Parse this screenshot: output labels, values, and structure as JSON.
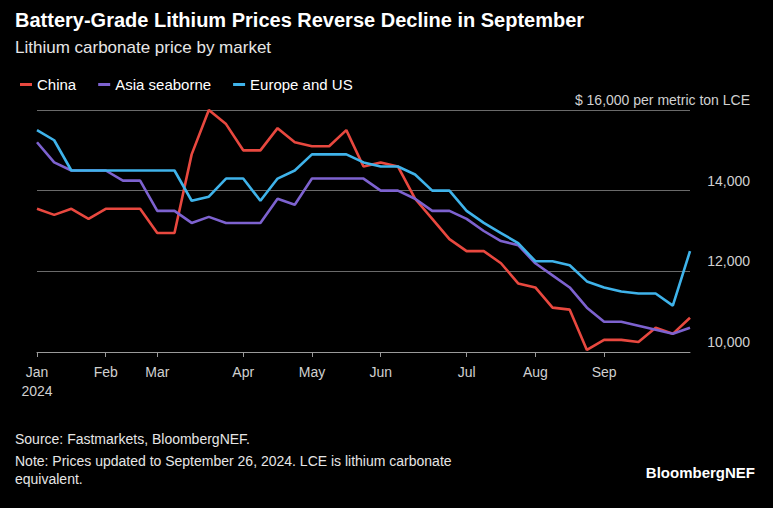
{
  "chart_data": {
    "type": "line",
    "title": "Battery-Grade Lithium Prices Reverse Decline in September",
    "subtitle": "Lithium carbonate price by market",
    "source": "Source: Fastmarkets, BloombergNEF.",
    "note": "Note: Prices updated to September 26, 2024. LCE is lithium carbonate equivalent.",
    "brand": "BloombergNEF",
    "categories": [
      "Jan\n2024",
      null,
      null,
      null,
      "Feb",
      null,
      null,
      "Mar",
      null,
      null,
      null,
      null,
      "Apr",
      null,
      null,
      null,
      "May",
      null,
      null,
      null,
      "Jun",
      null,
      null,
      null,
      null,
      "Jul",
      null,
      null,
      null,
      "Aug",
      null,
      null,
      null,
      "Sep",
      null,
      null,
      null,
      null,
      null
    ],
    "series": [
      {
        "name": "China",
        "color": "#e8483f",
        "values": [
          13550,
          13400,
          13550,
          13300,
          13550,
          13550,
          13550,
          12950,
          12950,
          14900,
          16000,
          15650,
          15000,
          15000,
          15550,
          15200,
          15100,
          15100,
          15500,
          14600,
          14700,
          14600,
          13800,
          13300,
          12800,
          12500,
          12500,
          12200,
          11700,
          11600,
          11100,
          11050,
          10050,
          10300,
          10300,
          10250,
          10600,
          10450,
          10850
        ]
      },
      {
        "name": "Asia seaborne",
        "color": "#7d62cf",
        "values": [
          15200,
          14700,
          14500,
          14500,
          14500,
          14250,
          14250,
          13500,
          13500,
          13200,
          13350,
          13200,
          13200,
          13200,
          13800,
          13650,
          14300,
          14300,
          14300,
          14300,
          14000,
          14000,
          13800,
          13500,
          13500,
          13300,
          13000,
          12750,
          12650,
          12200,
          11900,
          11600,
          11100,
          10750,
          10750,
          10650,
          10550,
          10450,
          10600
        ]
      },
      {
        "name": "Europe and US",
        "color": "#3fb3ea",
        "values": [
          15500,
          15250,
          14500,
          14500,
          14500,
          14500,
          14500,
          14500,
          14500,
          13750,
          13850,
          14300,
          14300,
          13750,
          14300,
          14500,
          14900,
          14900,
          14900,
          14700,
          14600,
          14600,
          14400,
          14000,
          14000,
          13500,
          13200,
          12950,
          12700,
          12250,
          12250,
          12150,
          11750,
          11600,
          11500,
          11450,
          11450,
          11150,
          12500
        ]
      }
    ],
    "ylim": [
      10000,
      16000
    ],
    "yticks": [
      {
        "value": 10000,
        "label": "10,000"
      },
      {
        "value": 12000,
        "label": "12,000"
      },
      {
        "value": 14000,
        "label": "14,000"
      },
      {
        "value": 16000,
        "label": "$ 16,000 per metric ton LCE"
      }
    ],
    "grid": true,
    "legend": "top-left"
  }
}
